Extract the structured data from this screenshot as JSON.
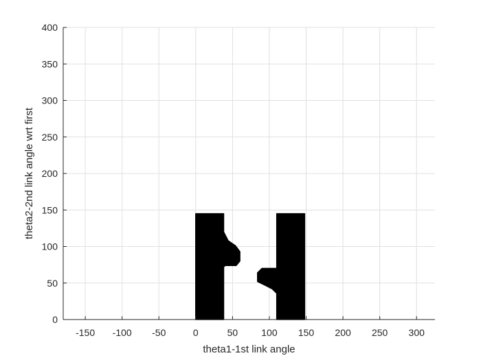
{
  "chart_data": {
    "type": "area",
    "title": "",
    "xlabel": "theta1-1st link angle",
    "ylabel": "theta2-2nd link angle wrt first",
    "xlim": [
      -180,
      325
    ],
    "ylim": [
      0,
      400
    ],
    "x_ticks": [
      -150,
      -100,
      -50,
      0,
      50,
      100,
      150,
      200,
      250,
      300
    ],
    "y_ticks": [
      0,
      50,
      100,
      150,
      200,
      250,
      300,
      350,
      400
    ],
    "grid": true,
    "legend": "none",
    "series": [
      {
        "points": [
          [
            0,
            0
          ],
          [
            0,
            145
          ],
          [
            38,
            145
          ],
          [
            38,
            120
          ],
          [
            44,
            108
          ],
          [
            54,
            101
          ],
          [
            60,
            93
          ],
          [
            60,
            80
          ],
          [
            55,
            74
          ],
          [
            40,
            74
          ],
          [
            38,
            72
          ],
          [
            38,
            0
          ]
        ],
        "color": "#000000"
      },
      {
        "points": [
          [
            110,
            0
          ],
          [
            110,
            36
          ],
          [
            104,
            42
          ],
          [
            96,
            46
          ],
          [
            84,
            52
          ],
          [
            84,
            64
          ],
          [
            90,
            70
          ],
          [
            110,
            70
          ],
          [
            110,
            145
          ],
          [
            148,
            145
          ],
          [
            148,
            0
          ]
        ],
        "color": "#000000"
      }
    ]
  }
}
